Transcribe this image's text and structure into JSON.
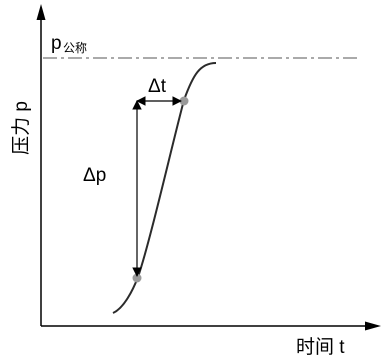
{
  "labels": {
    "y_axis": "压力 p",
    "x_axis": "时间 t",
    "nominal_symbol": "p",
    "nominal_subscript": "公称",
    "delta_t": "Δt",
    "delta_p": "Δp"
  },
  "colors": {
    "axis": "#000000",
    "curve": "#2b2b2b",
    "nominal_line": "#555555",
    "points": "#9a9a9a"
  }
}
